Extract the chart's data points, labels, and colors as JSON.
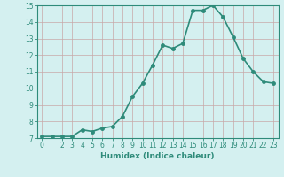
{
  "x": [
    0,
    1,
    2,
    3,
    4,
    5,
    6,
    7,
    8,
    9,
    10,
    11,
    12,
    13,
    14,
    15,
    16,
    17,
    18,
    19,
    20,
    21,
    22,
    23
  ],
  "y": [
    7.1,
    7.1,
    7.1,
    7.1,
    7.5,
    7.4,
    7.6,
    7.7,
    8.3,
    9.5,
    10.3,
    11.4,
    12.6,
    12.4,
    12.7,
    14.7,
    14.7,
    15.0,
    14.3,
    13.1,
    11.8,
    11.0,
    10.4,
    10.3
  ],
  "line_color": "#2e8b7a",
  "marker_color": "#2e8b7a",
  "bg_color": "#d4f0f0",
  "grid_color": "#c8a8a8",
  "xlabel": "Humidex (Indice chaleur)",
  "xlim_min": -0.5,
  "xlim_max": 23.5,
  "ylim_min": 7,
  "ylim_max": 15,
  "yticks": [
    7,
    8,
    9,
    10,
    11,
    12,
    13,
    14,
    15
  ],
  "xticks": [
    0,
    2,
    3,
    4,
    5,
    6,
    7,
    8,
    9,
    10,
    11,
    12,
    13,
    14,
    15,
    16,
    17,
    18,
    19,
    20,
    21,
    22,
    23
  ],
  "xtick_labels": [
    "0",
    "2",
    "3",
    "4",
    "5",
    "6",
    "7",
    "8",
    "9",
    "10",
    "11",
    "12",
    "13",
    "14",
    "15",
    "16",
    "17",
    "18",
    "19",
    "20",
    "21",
    "22",
    "23"
  ],
  "linewidth": 1.2,
  "markersize": 2.5,
  "xlabel_fontsize": 6.5,
  "tick_fontsize": 5.5
}
